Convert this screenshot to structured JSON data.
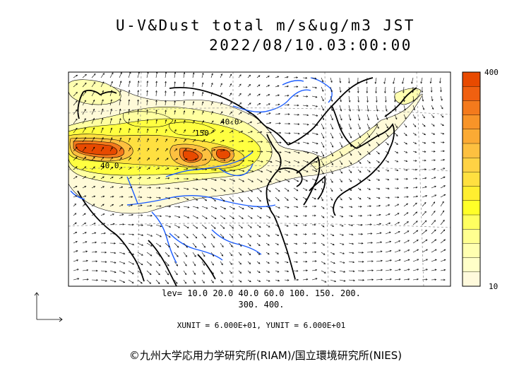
{
  "title": {
    "line1": "U-V&Dust total m/s&ug/m3 JST",
    "line2": "2022/08/10.03:00:00"
  },
  "legend": {
    "levels_line1": "lev= 10.0 20.0 40.0 60.0 100. 150. 200.",
    "levels_line2": "300. 400.",
    "units": "XUNIT = 6.000E+01, YUNIT = 6.000E+01"
  },
  "colorbar": {
    "max_label": "400",
    "min_label": "10",
    "colors_top_to_bottom": [
      "#e84a00",
      "#f06010",
      "#f47a1c",
      "#f89428",
      "#fbaa34",
      "#fdc040",
      "#ffd244",
      "#ffe040",
      "#ffee30",
      "#ffff28",
      "#ffff60",
      "#ffff90",
      "#ffffb0",
      "#ffffc8",
      "#fffadc"
    ]
  },
  "contour_labels": [
    "40.0",
    "150",
    "40.0"
  ],
  "colors": {
    "coast": "#000000",
    "river": "#1a5cff",
    "grid": "#8a8a8a"
  },
  "copyright": "©九州大学応用力学研究所(RIAM)/国立環境研究所(NIES)"
}
